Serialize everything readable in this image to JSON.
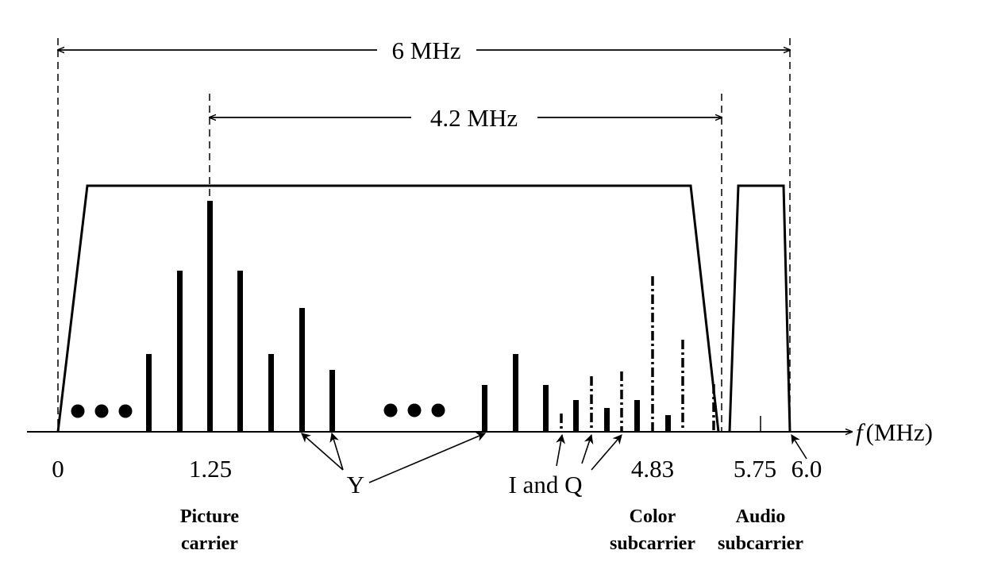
{
  "labels": {
    "bandwidth_total": "6 MHz",
    "bandwidth_video": "4.2 MHz",
    "axis_symbol": "f",
    "axis_unit": "(MHz)",
    "y_label": "Y",
    "iq_label": "I and Q"
  },
  "ticks": [
    "0",
    "1.25",
    "4.83",
    "5.75",
    "6.0"
  ],
  "carriers": {
    "picture": [
      "Picture",
      "carrier"
    ],
    "color": [
      "Color",
      "subcarrier"
    ],
    "audio": [
      "Audio",
      "subcarrier"
    ]
  },
  "colors": {
    "ink": "#000000",
    "background": "#ffffff"
  }
}
